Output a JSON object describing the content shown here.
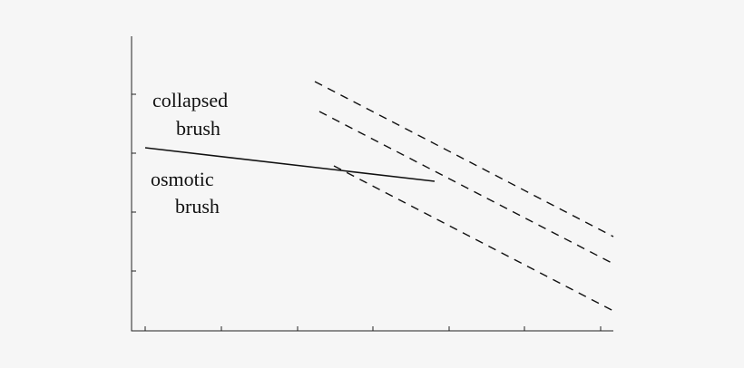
{
  "regions": [
    {
      "lines": [
        "collapsed",
        "brush"
      ]
    },
    {
      "lines": [
        "osmotic",
        "brush"
      ]
    }
  ]
}
